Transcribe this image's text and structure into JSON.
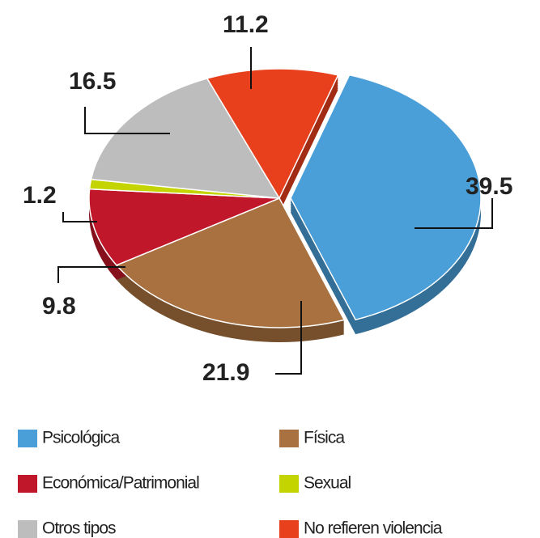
{
  "chart_data": {
    "type": "pie",
    "categories": [
      "Psicológica",
      "Física",
      "Económica/Patrimonial",
      "Sexual",
      "Otros tipos",
      "No refieren violencia"
    ],
    "values": [
      39.5,
      21.9,
      9.8,
      1.2,
      16.5,
      11.2
    ],
    "colors": [
      "#4a9fd8",
      "#a8713f",
      "#c0182a",
      "#c4d400",
      "#bdbdbd",
      "#e8401c"
    ],
    "explode": [
      true,
      false,
      false,
      false,
      false,
      false
    ],
    "legend": "bottom"
  }
}
